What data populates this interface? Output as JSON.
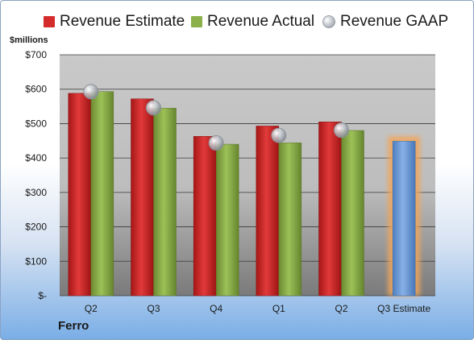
{
  "chart_data": {
    "type": "bar",
    "ylabel": "$millions",
    "ylim": [
      0,
      700
    ],
    "yticks": [
      {
        "value": 0,
        "label": "$-"
      },
      {
        "value": 100,
        "label": "$100"
      },
      {
        "value": 200,
        "label": "$200"
      },
      {
        "value": 300,
        "label": "$300"
      },
      {
        "value": 400,
        "label": "$400"
      },
      {
        "value": 500,
        "label": "$500"
      },
      {
        "value": 600,
        "label": "$600"
      },
      {
        "value": 700,
        "label": "$700"
      }
    ],
    "categories": [
      "Q2",
      "Q3",
      "Q4",
      "Q1",
      "Q2",
      "Q3 Estimate"
    ],
    "series": [
      {
        "name": "Revenue Estimate",
        "type": "bar",
        "color": "#d42b2b",
        "values": [
          588,
          572,
          463,
          493,
          505,
          null
        ]
      },
      {
        "name": "Revenue Actual",
        "type": "bar",
        "color": "#8cb04a",
        "values": [
          593,
          545,
          440,
          444,
          480,
          null
        ]
      },
      {
        "name": "Revenue GAAP",
        "type": "scatter",
        "color": "#b8bdc4",
        "values": [
          593,
          546,
          444,
          466,
          481,
          null
        ]
      },
      {
        "name": "",
        "type": "bar",
        "color": "#6a9ad8",
        "values": [
          null,
          null,
          null,
          null,
          null,
          449
        ],
        "highlight_color": "#f2a65a"
      }
    ],
    "grid": true,
    "legend": "top"
  },
  "company": "Ferro"
}
